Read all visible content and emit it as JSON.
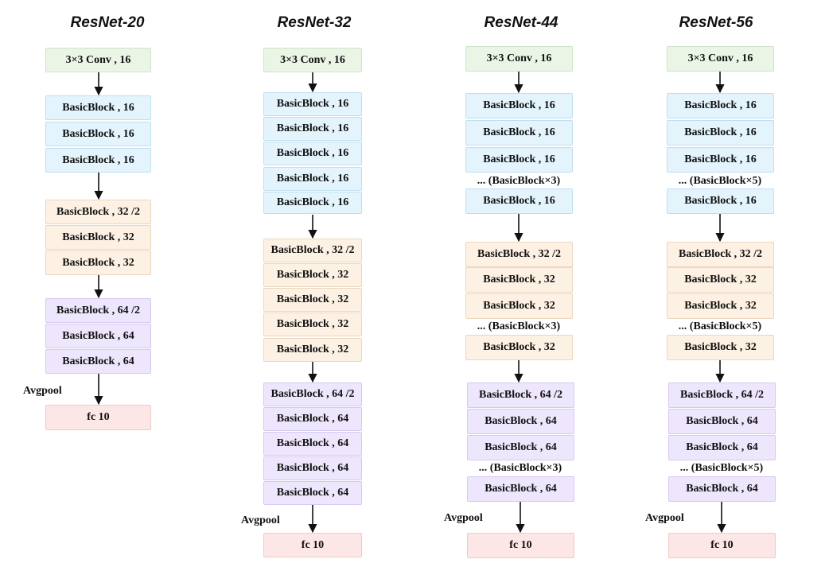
{
  "colors": {
    "conv": "#eaf5e6",
    "stage16": "#e3f4fd",
    "stage32": "#fdf1e4",
    "stage64": "#eee6fc",
    "fc": "#fde6e6",
    "arrow": "#111111"
  },
  "networks": [
    {
      "title": "ResNet-20",
      "conv": "3×3 Conv , 16",
      "stage16": [
        "BasicBlock , 16",
        "BasicBlock , 16",
        "BasicBlock , 16"
      ],
      "stage32": [
        "BasicBlock , 32 /2",
        "BasicBlock , 32",
        "BasicBlock , 32"
      ],
      "stage64": [
        "BasicBlock , 64 /2",
        "BasicBlock , 64",
        "BasicBlock , 64"
      ],
      "avgpool": "Avgpool",
      "fc": "fc 10"
    },
    {
      "title": "ResNet-32",
      "conv": "3×3 Conv , 16",
      "stage16": [
        "BasicBlock , 16",
        "BasicBlock , 16",
        "BasicBlock , 16",
        "BasicBlock , 16",
        "BasicBlock , 16"
      ],
      "stage32": [
        "BasicBlock , 32 /2",
        "BasicBlock , 32",
        "BasicBlock , 32",
        "BasicBlock , 32",
        "BasicBlock , 32"
      ],
      "stage64": [
        "BasicBlock , 64 /2",
        "BasicBlock , 64",
        "BasicBlock , 64",
        "BasicBlock , 64",
        "BasicBlock , 64"
      ],
      "avgpool": "Avgpool",
      "fc": "fc 10"
    },
    {
      "title": "ResNet-44",
      "conv": "3×3 Conv , 16",
      "stage16": [
        "BasicBlock , 16",
        "BasicBlock , 16",
        "BasicBlock , 16",
        "BasicBlock , 16"
      ],
      "stage32": [
        "BasicBlock , 32 /2",
        "BasicBlock , 32",
        "BasicBlock , 32",
        "BasicBlock , 32"
      ],
      "stage64": [
        "BasicBlock , 64 /2",
        "BasicBlock , 64",
        "BasicBlock , 64",
        "BasicBlock , 64"
      ],
      "ellipsis": "... (BasicBlock×3)",
      "avgpool": "Avgpool",
      "fc": "fc 10"
    },
    {
      "title": "ResNet-56",
      "conv": "3×3 Conv , 16",
      "stage16": [
        "BasicBlock , 16",
        "BasicBlock , 16",
        "BasicBlock , 16",
        "BasicBlock , 16"
      ],
      "stage32": [
        "BasicBlock , 32 /2",
        "BasicBlock , 32",
        "BasicBlock , 32",
        "BasicBlock , 32"
      ],
      "stage64": [
        "BasicBlock , 64 /2",
        "BasicBlock , 64",
        "BasicBlock , 64",
        "BasicBlock , 64"
      ],
      "ellipsis": "... (BasicBlock×5)",
      "avgpool": "Avgpool",
      "fc": "fc 10"
    }
  ]
}
